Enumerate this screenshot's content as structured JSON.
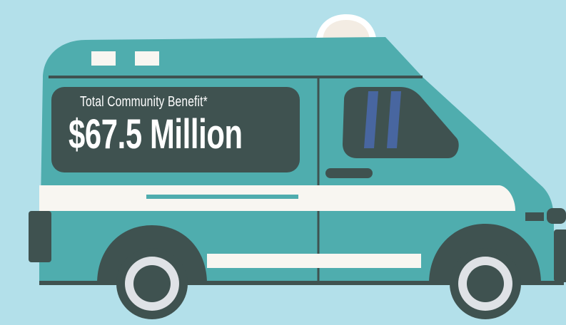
{
  "benefit": {
    "label": "Total Community Benefit*",
    "value": "$67.5 Million"
  },
  "colors": {
    "background": "#b3e0ea",
    "van_body": "#4fadae",
    "van_dark": "#3f5250",
    "stripe": "#f8f6f1",
    "window_stripe": "#4866a0",
    "wheel_rim": "#dfe2e6"
  }
}
